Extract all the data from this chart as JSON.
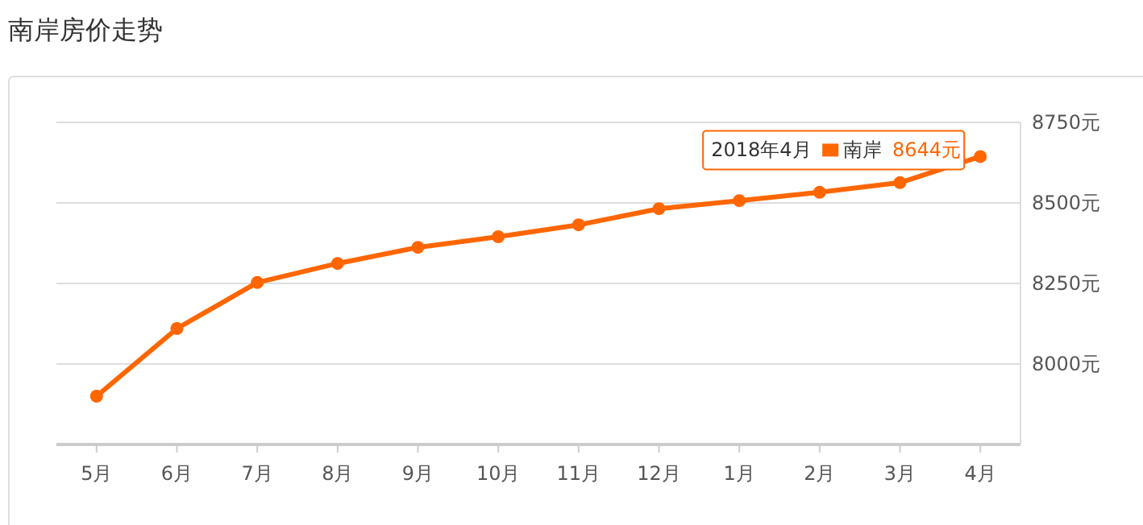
{
  "chart_data": {
    "type": "line",
    "title": "南岸房价走势",
    "categories": [
      "5月",
      "6月",
      "7月",
      "8月",
      "9月",
      "10月",
      "11月",
      "12月",
      "1月",
      "2月",
      "3月",
      "4月"
    ],
    "series": [
      {
        "name": "南岸",
        "color": "#ff6600",
        "values": [
          7900,
          8110,
          8253,
          8312,
          8362,
          8395,
          8432,
          8482,
          8507,
          8533,
          8563,
          8644
        ],
        "value_labels": [
          null,
          null,
          null,
          null,
          null,
          null,
          null,
          null,
          null,
          null,
          null,
          "8644元"
        ]
      }
    ],
    "ylim": [
      7750,
      8750
    ],
    "yticks": [
      {
        "value": 8000,
        "label": "8000元"
      },
      {
        "value": 8250,
        "label": "8250元"
      },
      {
        "value": 8500,
        "label": "8500元"
      },
      {
        "value": 8750,
        "label": "8750元"
      }
    ],
    "grid": "y",
    "marker": "circle",
    "line_style": "solid",
    "annotations": [
      "2018年4月"
    ]
  }
}
